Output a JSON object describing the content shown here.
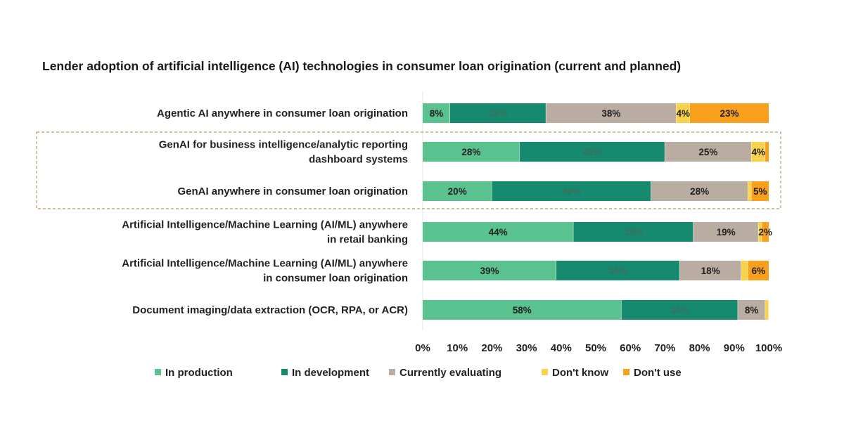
{
  "chart_data": {
    "type": "bar",
    "orientation": "horizontal",
    "stacked": true,
    "title": "Lender adoption of artificial intelligence (AI) technologies in consumer loan origination (current and planned)",
    "categories": [
      [
        "Agentic AI anywhere in consumer loan origination"
      ],
      [
        "GenAI for business intelligence/analytic reporting",
        "dashboard systems"
      ],
      [
        "GenAI anywhere in consumer loan origination"
      ],
      [
        "Artificial Intelligence/Machine Learning (AI/ML) anywhere",
        "in retail banking"
      ],
      [
        "Artificial Intelligence/Machine Learning (AI/ML) anywhere",
        "in consumer loan origination"
      ],
      [
        "Document imaging/data extraction (OCR, RPA, or ACR)"
      ]
    ],
    "highlighted_categories": [
      1,
      2
    ],
    "series": [
      {
        "name": "In production",
        "color": "#5ac28f",
        "values": [
          8,
          28,
          20,
          44,
          39,
          58
        ],
        "labels": [
          "8%",
          "28%",
          "20%",
          "44%",
          "39%",
          "58%"
        ]
      },
      {
        "name": "In development",
        "color": "#168a6e",
        "values": [
          28,
          42,
          46,
          35,
          36,
          34
        ],
        "labels": [
          "28%",
          "42%",
          "46%",
          "35%",
          "36%",
          "34%"
        ]
      },
      {
        "name": "Currently evaluating",
        "color": "#b9ada1",
        "values": [
          38,
          25,
          28,
          19,
          18,
          8
        ],
        "labels": [
          "38%",
          "25%",
          "28%",
          "19%",
          "18%",
          "8%"
        ]
      },
      {
        "name": "Don't know",
        "color": "#f8d24a",
        "values": [
          4,
          4,
          1,
          1,
          2,
          1
        ],
        "labels": [
          "4%",
          "4%",
          null,
          null,
          null,
          null
        ]
      },
      {
        "name": "Don't use",
        "color": "#f8a01c",
        "values": [
          23,
          1,
          5,
          2,
          6,
          0
        ],
        "labels": [
          "23%",
          null,
          "5%",
          "2%",
          "6%",
          null
        ]
      }
    ],
    "xlim": [
      0,
      100
    ],
    "xticks": [
      "0%",
      "10%",
      "20%",
      "30%",
      "40%",
      "50%",
      "60%",
      "70%",
      "80%",
      "90%",
      "100%"
    ],
    "grid": false,
    "legend_position": "bottom"
  }
}
